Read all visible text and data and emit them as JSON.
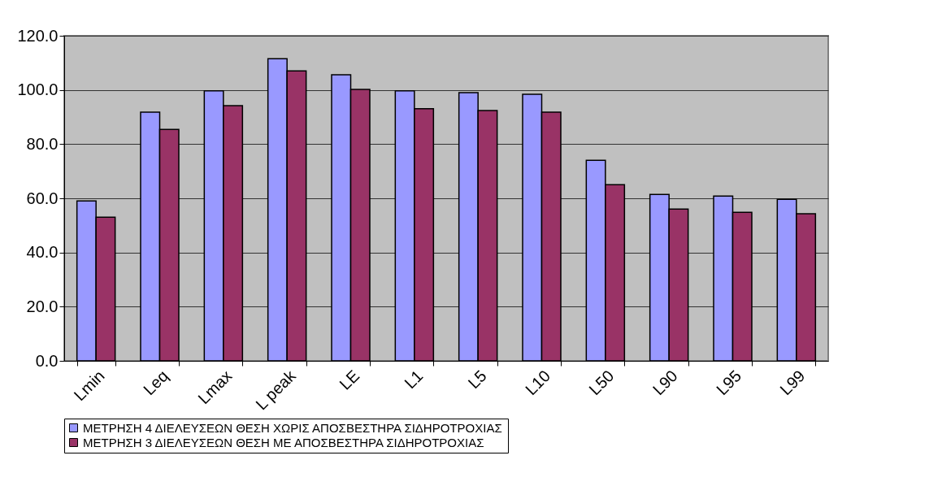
{
  "chart_data": {
    "type": "bar",
    "categories": [
      "Lmin",
      "Leq",
      "Lmax",
      "L peak",
      "LE",
      "L1",
      "L5",
      "L10",
      "L50",
      "L90",
      "L95",
      "L99"
    ],
    "series": [
      {
        "name": "ΜΕΤΡΗΣΗ 4 ΔΙΕΛΕΥΣΕΩΝ ΘΕΣΗ ΧΩΡΙΣ ΑΠΟΣΒΕΣΤΗΡΑ ΣΙΔΗΡΟΤΡΟΧΙΑΣ",
        "color": "#9999ff",
        "values": [
          59.0,
          91.8,
          99.7,
          111.5,
          105.6,
          99.7,
          99.0,
          98.4,
          74.0,
          61.4,
          60.8,
          59.6
        ]
      },
      {
        "name": "ΜΕΤΡΗΣΗ 3 ΔΙΕΛΕΥΣΕΩΝ ΘΕΣΗ ΜΕ ΑΠΟΣΒΕΣΤΗΡΑ ΣΙΔΗΡΟΤΡΟΧΙΑΣ",
        "color": "#993366",
        "values": [
          53.0,
          85.4,
          94.2,
          107.0,
          100.2,
          93.1,
          92.4,
          91.8,
          65.0,
          56.0,
          54.8,
          54.3
        ]
      }
    ],
    "ylim": [
      0,
      120
    ],
    "yticks": [
      {
        "value": 0,
        "label": "0.0"
      },
      {
        "value": 20,
        "label": "20.0"
      },
      {
        "value": 40,
        "label": "40.0"
      },
      {
        "value": 60,
        "label": "60.0"
      },
      {
        "value": 80,
        "label": "80.0"
      },
      {
        "value": 100,
        "label": "100.0"
      },
      {
        "value": 120,
        "label": "120.0"
      }
    ],
    "grid": "y",
    "legend": "bottom"
  }
}
